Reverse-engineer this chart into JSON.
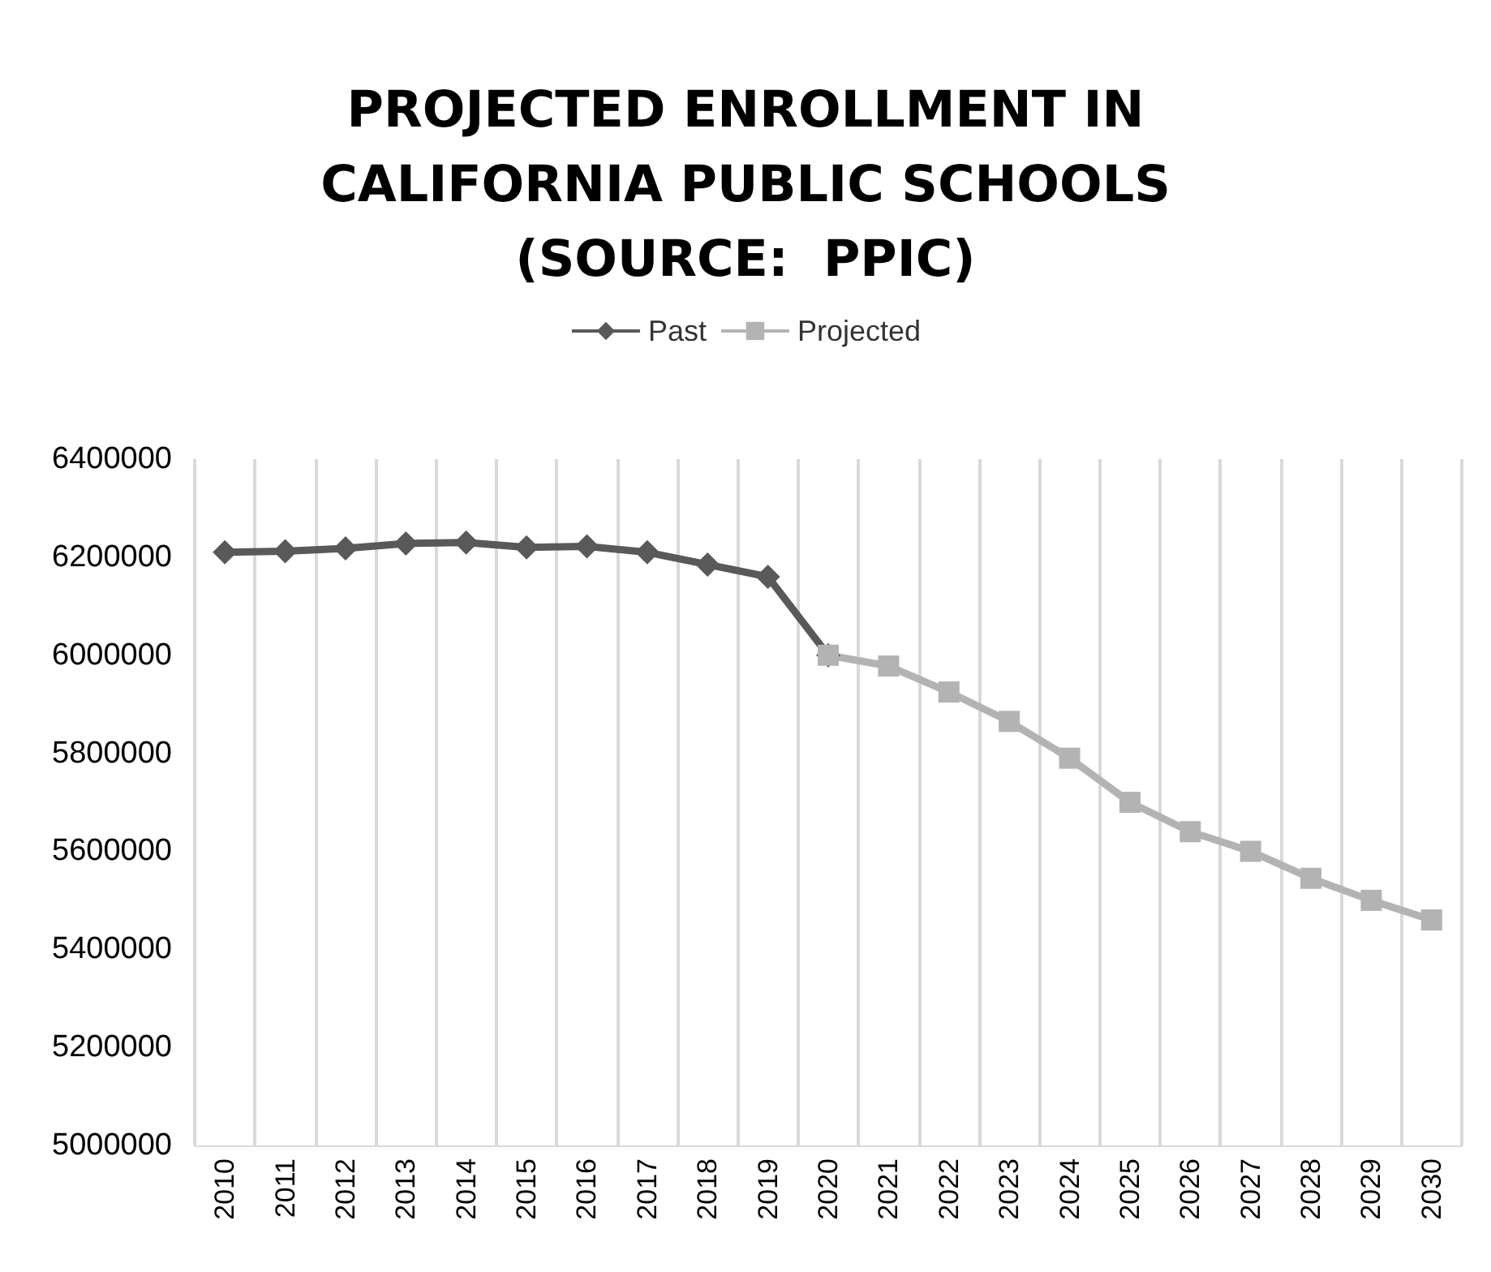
{
  "chart_data": {
    "type": "line",
    "title": "PROJECTED ENROLLMENT IN\nCALIFORNIA PUBLIC SCHOOLS\n(SOURCE:  PPIC)",
    "categories": [
      "2010",
      "2011",
      "2012",
      "2013",
      "2014",
      "2015",
      "2016",
      "2017",
      "2018",
      "2019",
      "2020",
      "2021",
      "2022",
      "2023",
      "2024",
      "2025",
      "2026",
      "2027",
      "2028",
      "2029",
      "2030"
    ],
    "series": [
      {
        "name": "Past",
        "color": "#595959",
        "marker": "diamond",
        "values": [
          6210000,
          6212000,
          6218000,
          6228000,
          6230000,
          6220000,
          6222000,
          6210000,
          6185000,
          6160000,
          6000000,
          null,
          null,
          null,
          null,
          null,
          null,
          null,
          null,
          null,
          null
        ]
      },
      {
        "name": "Projected",
        "color": "#b3b3b3",
        "marker": "square",
        "values": [
          null,
          null,
          null,
          null,
          null,
          null,
          null,
          null,
          null,
          null,
          6000000,
          5978000,
          5925000,
          5865000,
          5790000,
          5700000,
          5640000,
          5600000,
          5545000,
          5500000,
          5460000
        ]
      }
    ],
    "ylim": [
      5000000,
      6400000
    ],
    "yticks": [
      5000000,
      5200000,
      5400000,
      5600000,
      5800000,
      6000000,
      6200000,
      6400000
    ],
    "grid": "x",
    "legend": "top",
    "line_style": "solid"
  }
}
